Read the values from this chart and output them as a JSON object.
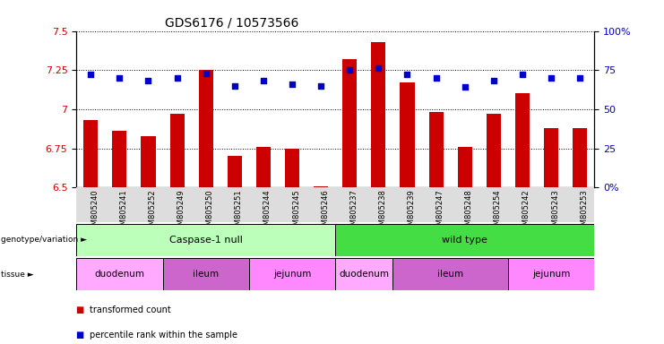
{
  "title": "GDS6176 / 10573566",
  "samples": [
    "GSM805240",
    "GSM805241",
    "GSM805252",
    "GSM805249",
    "GSM805250",
    "GSM805251",
    "GSM805244",
    "GSM805245",
    "GSM805246",
    "GSM805237",
    "GSM805238",
    "GSM805239",
    "GSM805247",
    "GSM805248",
    "GSM805254",
    "GSM805242",
    "GSM805243",
    "GSM805253"
  ],
  "bar_values": [
    6.93,
    6.86,
    6.83,
    6.97,
    7.25,
    6.7,
    6.76,
    6.75,
    6.51,
    7.32,
    7.43,
    7.17,
    6.98,
    6.76,
    6.97,
    7.1,
    6.88,
    6.88
  ],
  "percentile_values": [
    72,
    70,
    68,
    70,
    73,
    65,
    68,
    66,
    65,
    75,
    76,
    72,
    70,
    64,
    68,
    72,
    70,
    70
  ],
  "ylim_left": [
    6.5,
    7.5
  ],
  "ylim_right": [
    0,
    100
  ],
  "yticks_left": [
    6.5,
    6.75,
    7.0,
    7.25,
    7.5
  ],
  "ytick_labels_left": [
    "6.5",
    "6.75",
    "7",
    "7.25",
    "7.5"
  ],
  "ytick_labels_right": [
    "0%",
    "25",
    "50",
    "75",
    "100%"
  ],
  "yticks_right": [
    0,
    25,
    50,
    75,
    100
  ],
  "bar_color": "#cc0000",
  "dot_color": "#0000cc",
  "grid_color": "#000000",
  "genotype_groups": [
    {
      "label": "Caspase-1 null",
      "start": 0,
      "end": 8,
      "color": "#bbffbb"
    },
    {
      "label": "wild type",
      "start": 9,
      "end": 17,
      "color": "#44dd44"
    }
  ],
  "tissue_groups": [
    {
      "label": "duodenum",
      "start": 0,
      "end": 2,
      "color": "#ffaaff"
    },
    {
      "label": "ileum",
      "start": 3,
      "end": 5,
      "color": "#cc66cc"
    },
    {
      "label": "jejunum",
      "start": 6,
      "end": 8,
      "color": "#ff88ff"
    },
    {
      "label": "duodenum",
      "start": 9,
      "end": 10,
      "color": "#ffaaff"
    },
    {
      "label": "ileum",
      "start": 11,
      "end": 14,
      "color": "#cc66cc"
    },
    {
      "label": "jejunum",
      "start": 15,
      "end": 17,
      "color": "#ff88ff"
    }
  ],
  "background_color": "#ffffff",
  "title_fontsize": 10,
  "bar_width": 0.5
}
